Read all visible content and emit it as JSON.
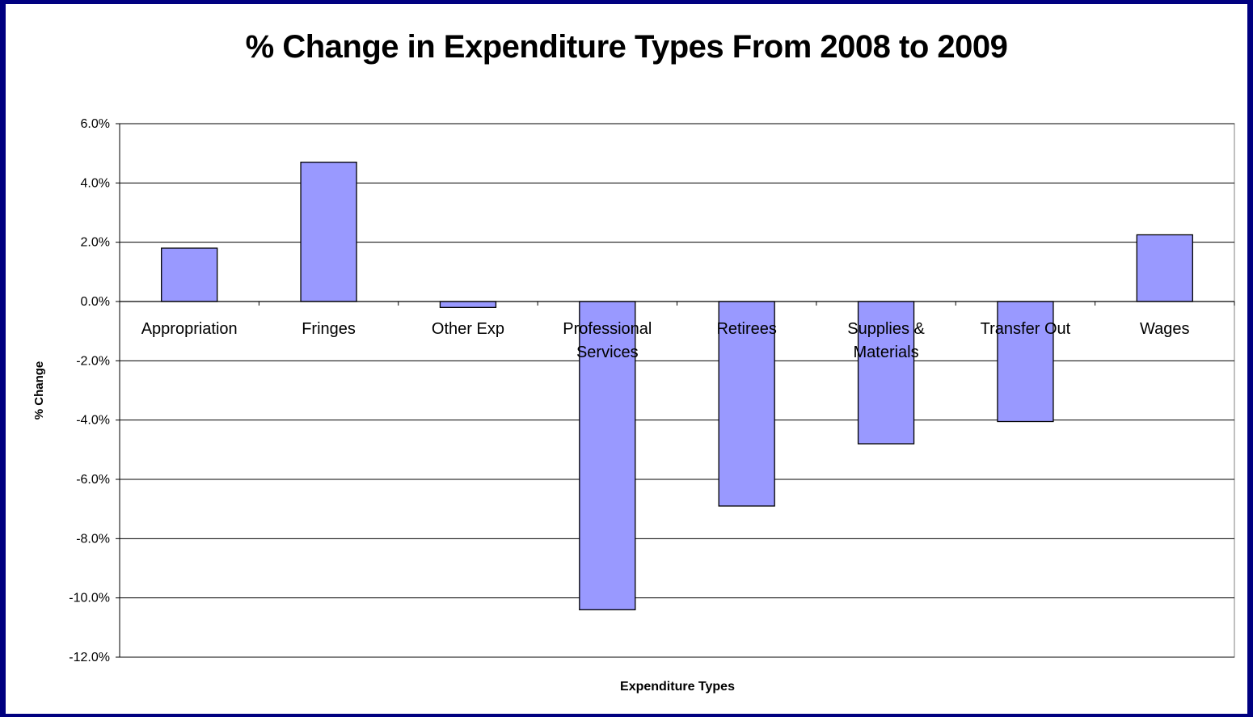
{
  "chart_data": {
    "type": "bar",
    "title": "% Change in Expenditure Types From 2008 to 2009",
    "xlabel": "Expenditure Types",
    "ylabel": "% Change",
    "categories": [
      "Appropriation",
      "Fringes",
      "Other Exp",
      "Professional Services",
      "Retirees",
      "Supplies & Materials",
      "Transfer Out",
      "Wages"
    ],
    "category_lines": [
      [
        "Appropriation"
      ],
      [
        "Fringes"
      ],
      [
        "Other Exp"
      ],
      [
        "Professional",
        "Services"
      ],
      [
        "Retirees"
      ],
      [
        "Supplies &",
        "Materials"
      ],
      [
        "Transfer Out"
      ],
      [
        "Wages"
      ]
    ],
    "values": [
      1.8,
      4.7,
      -0.2,
      -10.4,
      -6.9,
      -4.8,
      -4.05,
      2.25
    ],
    "ylim": [
      -12,
      6
    ],
    "yticks": [
      6,
      4,
      2,
      0,
      -2,
      -4,
      -6,
      -8,
      -10,
      -12
    ],
    "ytick_labels": [
      "6.0%",
      "4.0%",
      "2.0%",
      "0.0%",
      "-2.0%",
      "-4.0%",
      "-6.0%",
      "-8.0%",
      "-10.0%",
      "-12.0%"
    ],
    "grid": true,
    "legend": "none",
    "colors": {
      "bar_fill": "#9999ff",
      "bar_stroke": "#000000",
      "frame": "#000080",
      "grid": "#000000"
    }
  }
}
